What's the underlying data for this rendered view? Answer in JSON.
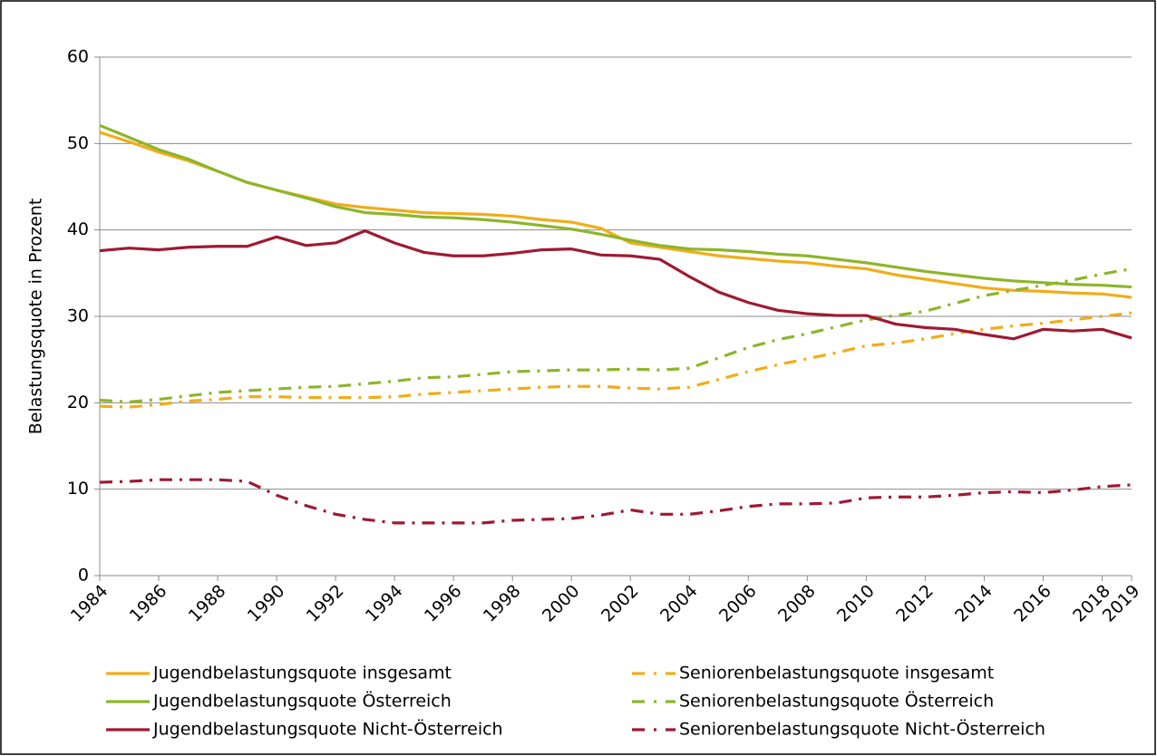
{
  "chart_data": {
    "type": "line",
    "y_label": "Belastungsquote in Prozent",
    "x": [
      1984,
      1985,
      1986,
      1987,
      1988,
      1989,
      1990,
      1991,
      1992,
      1993,
      1994,
      1995,
      1996,
      1997,
      1998,
      1999,
      2000,
      2001,
      2002,
      2003,
      2004,
      2005,
      2006,
      2007,
      2008,
      2009,
      2010,
      2011,
      2012,
      2013,
      2014,
      2015,
      2016,
      2017,
      2018,
      2019
    ],
    "xlim": [
      1984,
      2019
    ],
    "xticks": [
      1984,
      1986,
      1988,
      1990,
      1992,
      1994,
      1996,
      1998,
      2000,
      2002,
      2004,
      2006,
      2008,
      2010,
      2012,
      2014,
      2016,
      2018,
      2019
    ],
    "ylim": [
      0,
      60
    ],
    "yticks": [
      0,
      10,
      20,
      30,
      40,
      50,
      60
    ],
    "grid": true,
    "legend": "bottom",
    "series": [
      {
        "name": "Jugendbelastungsquote insgesamt",
        "color": "#f0ad1a",
        "style": "solid",
        "values": [
          51.3,
          50.2,
          49.0,
          48.0,
          46.8,
          45.5,
          44.6,
          43.8,
          43.0,
          42.6,
          42.3,
          42.0,
          41.9,
          41.8,
          41.6,
          41.2,
          40.9,
          40.2,
          38.5,
          38.0,
          37.5,
          37.0,
          36.7,
          36.4,
          36.2,
          35.8,
          35.5,
          34.8,
          34.3,
          33.8,
          33.3,
          33.0,
          32.9,
          32.7,
          32.6,
          32.2
        ]
      },
      {
        "name": "Seniorenbelastungsquote insgesamt",
        "color": "#f0ad1a",
        "style": "dashdot",
        "values": [
          19.6,
          19.5,
          19.8,
          20.2,
          20.4,
          20.7,
          20.7,
          20.6,
          20.6,
          20.6,
          20.7,
          21.0,
          21.2,
          21.4,
          21.6,
          21.8,
          21.9,
          21.9,
          21.7,
          21.6,
          21.8,
          22.7,
          23.6,
          24.4,
          25.1,
          25.8,
          26.6,
          26.9,
          27.4,
          28.0,
          28.5,
          28.9,
          29.2,
          29.6,
          30.0,
          30.4
        ]
      },
      {
        "name": "Jugendbelastungsquote Österreich",
        "color": "#8db52a",
        "style": "solid",
        "values": [
          52.1,
          50.7,
          49.3,
          48.2,
          46.8,
          45.5,
          44.6,
          43.7,
          42.7,
          42.0,
          41.8,
          41.5,
          41.4,
          41.2,
          40.9,
          40.5,
          40.1,
          39.5,
          38.8,
          38.2,
          37.8,
          37.7,
          37.5,
          37.2,
          37.0,
          36.6,
          36.2,
          35.7,
          35.2,
          34.8,
          34.4,
          34.1,
          33.9,
          33.7,
          33.6,
          33.4
        ]
      },
      {
        "name": "Seniorenbelastungsquote Österreich",
        "color": "#8db52a",
        "style": "dashdot",
        "values": [
          20.3,
          20.1,
          20.4,
          20.8,
          21.2,
          21.4,
          21.6,
          21.8,
          21.9,
          22.2,
          22.5,
          22.9,
          23.0,
          23.3,
          23.6,
          23.7,
          23.8,
          23.8,
          23.9,
          23.8,
          24.0,
          25.2,
          26.4,
          27.3,
          28.0,
          28.8,
          29.6,
          30.1,
          30.6,
          31.5,
          32.4,
          33.0,
          33.6,
          34.2,
          34.9,
          35.5
        ]
      },
      {
        "name": "Jugendbelastungsquote Nicht-Österreich",
        "color": "#9e1a32",
        "style": "solid",
        "values": [
          37.6,
          37.9,
          37.7,
          38.0,
          38.1,
          38.1,
          39.2,
          38.2,
          38.5,
          39.9,
          38.5,
          37.4,
          37.0,
          37.0,
          37.3,
          37.7,
          37.8,
          37.1,
          37.0,
          36.6,
          34.6,
          32.8,
          31.6,
          30.7,
          30.3,
          30.1,
          30.1,
          29.1,
          28.7,
          28.5,
          27.9,
          27.4,
          28.5,
          28.3,
          28.5,
          27.5
        ]
      },
      {
        "name": "Seniorenbelastungsquote Nicht-Österreich",
        "color": "#9e1a32",
        "style": "dashdot",
        "values": [
          10.8,
          10.9,
          11.1,
          11.1,
          11.1,
          10.9,
          9.3,
          8.1,
          7.1,
          6.5,
          6.1,
          6.1,
          6.1,
          6.1,
          6.4,
          6.5,
          6.6,
          7.0,
          7.6,
          7.1,
          7.1,
          7.5,
          8.0,
          8.3,
          8.3,
          8.4,
          9.0,
          9.1,
          9.1,
          9.3,
          9.6,
          9.7,
          9.6,
          9.9,
          10.3,
          10.5
        ]
      }
    ]
  }
}
